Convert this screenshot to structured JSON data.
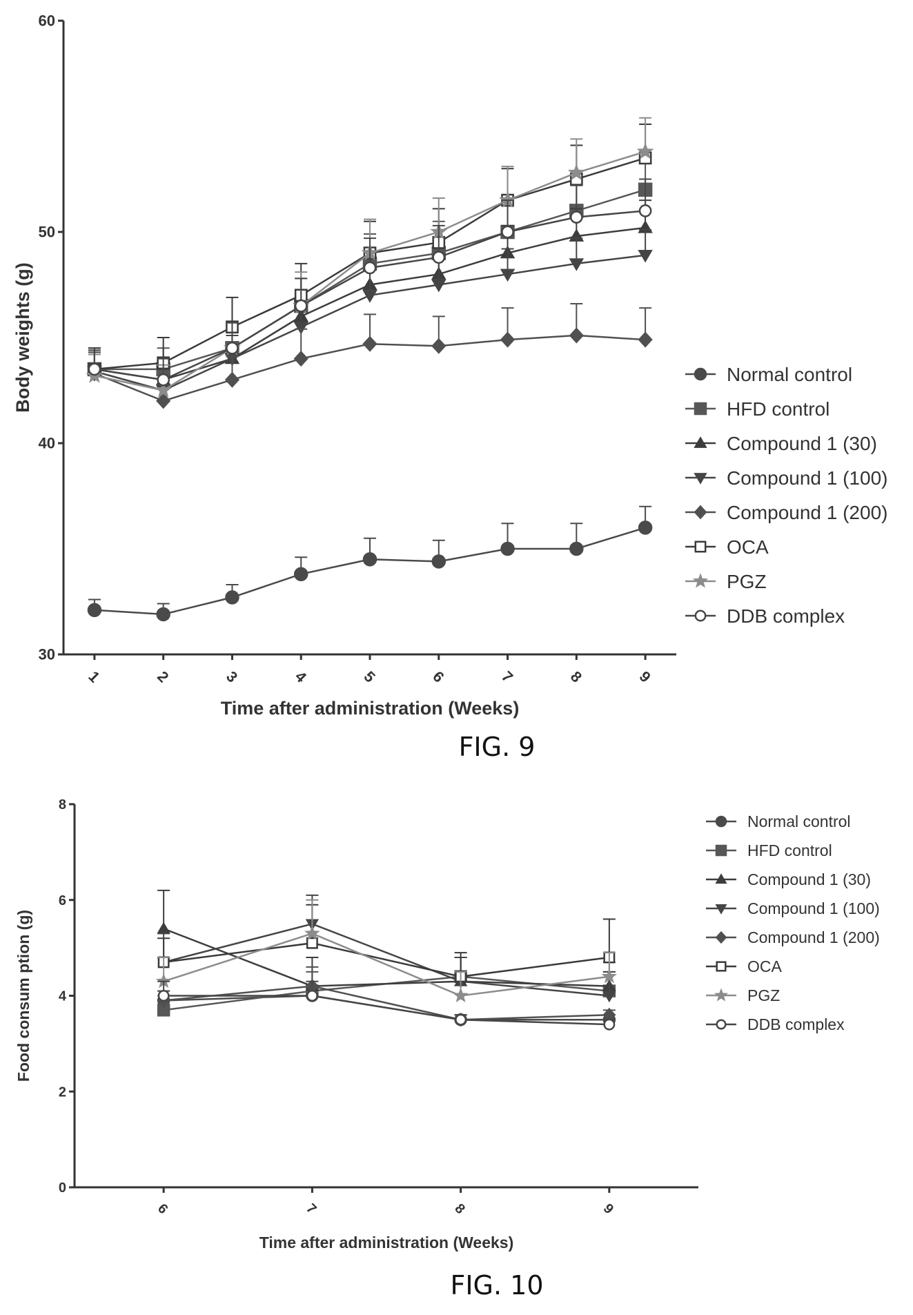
{
  "figures": [
    {
      "caption": "FIG. 9",
      "chart_data": {
        "type": "line",
        "xlabel": "Time after administration (Weeks)",
        "ylabel": "Body weights (g)",
        "x": [
          1,
          2,
          3,
          4,
          5,
          6,
          7,
          8,
          9
        ],
        "xticks": [
          "1",
          "2",
          "3",
          "4",
          "5",
          "6",
          "7",
          "8",
          "9"
        ],
        "ylim": [
          30,
          60
        ],
        "yticks": [
          "30",
          "40",
          "50",
          "60"
        ],
        "legend_position": "right",
        "series": [
          {
            "name": "Normal control",
            "marker": "circle-filled",
            "values": [
              32.1,
              31.9,
              32.7,
              33.8,
              34.5,
              34.4,
              35.0,
              35.0,
              36.0
            ],
            "error": [
              0.5,
              0.5,
              0.6,
              0.8,
              1.0,
              1.0,
              1.2,
              1.2,
              1.0
            ]
          },
          {
            "name": "HFD control",
            "marker": "square-filled",
            "values": [
              43.5,
              43.5,
              44.5,
              46.5,
              48.5,
              49.0,
              50.0,
              51.0,
              52.0
            ],
            "error": [
              1.0,
              1.0,
              1.2,
              1.3,
              1.4,
              1.5,
              1.5,
              1.5,
              1.5
            ]
          },
          {
            "name": "Compound 1 (30)",
            "marker": "triangle-up-filled",
            "values": [
              43.5,
              43.0,
              44.0,
              46.0,
              47.5,
              48.0,
              49.0,
              49.8,
              50.2
            ],
            "error": [
              0.9,
              1.0,
              1.1,
              1.2,
              1.3,
              1.3,
              1.3,
              1.3,
              1.3
            ]
          },
          {
            "name": "Compound 1 (100)",
            "marker": "triangle-down-filled",
            "values": [
              43.4,
              42.5,
              44.0,
              45.5,
              47.0,
              47.5,
              48.0,
              48.5,
              48.9
            ],
            "error": [
              0.9,
              1.0,
              1.1,
              1.2,
              1.2,
              1.2,
              1.2,
              1.2,
              1.2
            ]
          },
          {
            "name": "Compound 1 (200)",
            "marker": "diamond-filled",
            "values": [
              43.3,
              42.0,
              43.0,
              44.0,
              44.7,
              44.6,
              44.9,
              45.1,
              44.9
            ],
            "error": [
              1.0,
              1.0,
              1.1,
              1.4,
              1.4,
              1.4,
              1.5,
              1.5,
              1.5
            ]
          },
          {
            "name": "OCA",
            "marker": "square-open",
            "values": [
              43.5,
              43.8,
              45.5,
              47.0,
              49.0,
              49.5,
              51.5,
              52.5,
              53.5
            ],
            "error": [
              1.0,
              1.2,
              1.4,
              1.5,
              1.5,
              1.6,
              1.5,
              1.6,
              1.6
            ]
          },
          {
            "name": "PGZ",
            "marker": "star-filled",
            "values": [
              43.2,
              42.5,
              44.5,
              46.5,
              49.0,
              50.0,
              51.5,
              52.8,
              53.8
            ],
            "error": [
              1.0,
              1.2,
              1.2,
              1.6,
              1.6,
              1.6,
              1.6,
              1.6,
              1.6
            ]
          },
          {
            "name": "DDB complex",
            "marker": "circle-open",
            "values": [
              43.5,
              43.0,
              44.5,
              46.5,
              48.3,
              48.8,
              50.0,
              50.7,
              51.0
            ],
            "error": [
              1.0,
              1.0,
              1.2,
              1.3,
              1.4,
              1.5,
              1.5,
              1.5,
              1.5
            ]
          }
        ]
      }
    },
    {
      "caption": "FIG. 10",
      "chart_data": {
        "type": "line",
        "xlabel": "Time after administration (Weeks)",
        "ylabel": "Food consum ption (g)",
        "x": [
          6,
          7,
          8,
          9
        ],
        "xticks": [
          "6",
          "7",
          "8",
          "9"
        ],
        "ylim": [
          0,
          8
        ],
        "yticks": [
          "0",
          "2",
          "4",
          "6",
          "8"
        ],
        "legend_position": "right",
        "series": [
          {
            "name": "Normal control",
            "marker": "circle-filled",
            "values": [
              3.9,
              4.0,
              3.5,
              3.5
            ],
            "error": [
              0.2,
              0.2,
              0.1,
              0.1
            ]
          },
          {
            "name": "HFD control",
            "marker": "square-filled",
            "values": [
              3.7,
              4.1,
              4.4,
              4.1
            ],
            "error": [
              0.3,
              0.4,
              0.4,
              0.4
            ]
          },
          {
            "name": "Compound 1 (30)",
            "marker": "triangle-up-filled",
            "values": [
              5.4,
              4.2,
              4.3,
              4.2
            ],
            "error": [
              0.8,
              0.6,
              0.5,
              0.5
            ]
          },
          {
            "name": "Compound 1 (100)",
            "marker": "triangle-down-filled",
            "values": [
              4.7,
              5.5,
              4.3,
              4.0
            ],
            "error": [
              0.6,
              0.6,
              0.5,
              0.5
            ]
          },
          {
            "name": "Compound 1 (200)",
            "marker": "diamond-filled",
            "values": [
              3.9,
              4.2,
              3.5,
              3.6
            ],
            "error": [
              0.2,
              0.4,
              0.1,
              0.1
            ]
          },
          {
            "name": "OCA",
            "marker": "square-open",
            "values": [
              4.7,
              5.1,
              4.4,
              4.8
            ],
            "error": [
              0.5,
              0.8,
              0.5,
              0.8
            ]
          },
          {
            "name": "PGZ",
            "marker": "star-filled",
            "values": [
              4.3,
              5.3,
              4.0,
              4.4
            ],
            "error": [
              0.5,
              0.7,
              0.5,
              0.5
            ]
          },
          {
            "name": "DDB complex",
            "marker": "circle-open",
            "values": [
              4.0,
              4.0,
              3.5,
              3.4
            ],
            "error": [
              0.3,
              0.3,
              0.1,
              0.1
            ]
          }
        ]
      }
    }
  ],
  "colors": {
    "axis": "#333333",
    "series": [
      "#4a4a4a",
      "#575757",
      "#3d3d3d",
      "#454545",
      "#505050",
      "#3a3a3a",
      "#8c8c8c",
      "#464646"
    ]
  }
}
